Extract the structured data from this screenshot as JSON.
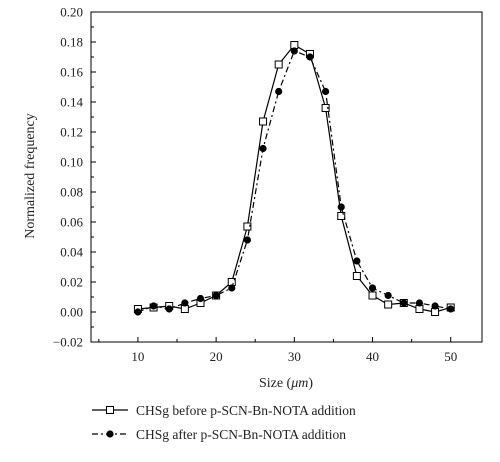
{
  "chart_data": {
    "type": "line",
    "xlabel": "Size (μm)",
    "xlabel_prefix": "Size (",
    "xlabel_unit": "μm",
    "xlabel_suffix": ")",
    "ylabel": "Normalized frequency",
    "xlim": [
      4,
      54
    ],
    "ylim": [
      -0.02,
      0.2
    ],
    "xticks": [
      10,
      20,
      30,
      40,
      50
    ],
    "yticks": [
      -0.02,
      0.0,
      0.02,
      0.04,
      0.06,
      0.08,
      0.1,
      0.12,
      0.14,
      0.16,
      0.18,
      0.2
    ],
    "ytick_labels": [
      "−0.02",
      "0.00",
      "0.02",
      "0.04",
      "0.06",
      "0.08",
      "0.10",
      "0.12",
      "0.14",
      "0.16",
      "0.18",
      "0.20"
    ],
    "grid": false,
    "legend_position": "bottom",
    "x": [
      10,
      12,
      14,
      16,
      18,
      20,
      22,
      24,
      26,
      28,
      30,
      32,
      34,
      36,
      38,
      40,
      42,
      44,
      46,
      48,
      50
    ],
    "series": [
      {
        "name": "CHSg before p-SCN-Bn-NOTA addition",
        "marker": "open-square",
        "line": "solid",
        "color": "#000000",
        "values": [
          0.002,
          0.003,
          0.004,
          0.002,
          0.006,
          0.011,
          0.02,
          0.057,
          0.127,
          0.165,
          0.178,
          0.172,
          0.136,
          0.064,
          0.024,
          0.011,
          0.005,
          0.006,
          0.002,
          0.0,
          0.003
        ]
      },
      {
        "name": "CHSg after p-SCN-Bn-NOTA addition",
        "marker": "filled-circle",
        "line": "dash-dot",
        "color": "#000000",
        "values": [
          0.0,
          0.004,
          0.002,
          0.006,
          0.009,
          0.011,
          0.016,
          0.048,
          0.109,
          0.147,
          0.174,
          0.17,
          0.147,
          0.07,
          0.034,
          0.016,
          0.011,
          0.006,
          0.006,
          0.004,
          0.002
        ]
      }
    ]
  }
}
